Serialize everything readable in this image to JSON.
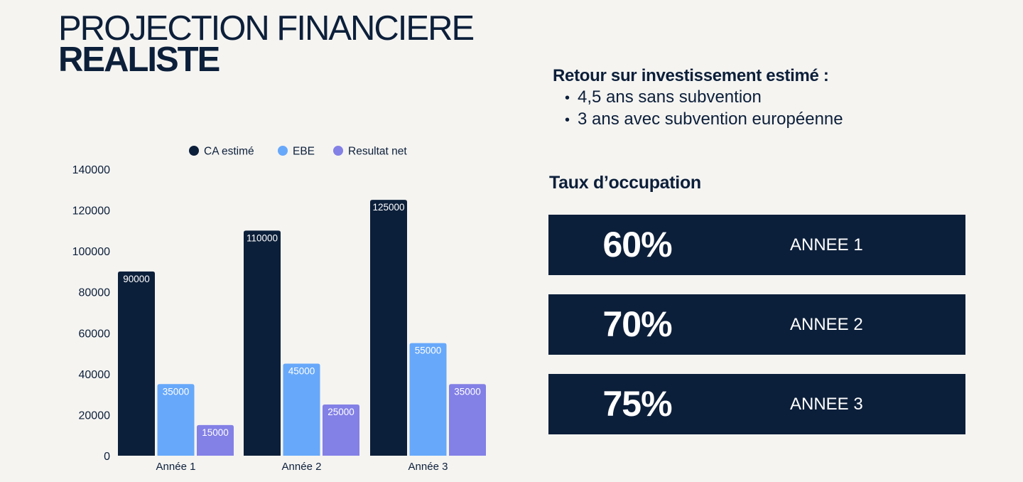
{
  "title": {
    "line1": "PROJECTION FINANCIERE",
    "line2": "REALISTE"
  },
  "roi": {
    "heading": "Retour sur investissement estimé :",
    "items": [
      "4,5 ans sans subvention",
      "3 ans avec subvention européenne"
    ]
  },
  "occupation": {
    "heading": "Taux d’occupation",
    "rows": [
      {
        "percent": "60%",
        "year": "ANNEE 1"
      },
      {
        "percent": "70%",
        "year": "ANNEE 2"
      },
      {
        "percent": "75%",
        "year": "ANNEE 3"
      }
    ]
  },
  "chart_data": {
    "type": "bar",
    "categories": [
      "Année 1",
      "Année 2",
      "Année 3"
    ],
    "series": [
      {
        "name": "CA estimé",
        "color": "#0c1f3a",
        "values": [
          90000,
          110000,
          125000
        ]
      },
      {
        "name": "EBE",
        "color": "#67a8fa",
        "values": [
          35000,
          45000,
          55000
        ]
      },
      {
        "name": "Resultat net",
        "color": "#8380e6",
        "values": [
          15000,
          25000,
          35000
        ]
      }
    ],
    "yticks": [
      "0",
      "20000",
      "40000",
      "60000",
      "80000",
      "100000",
      "120000",
      "140000"
    ],
    "ylim": [
      0,
      140000
    ],
    "legend_position": "top",
    "data_labels": true,
    "grid": false
  }
}
